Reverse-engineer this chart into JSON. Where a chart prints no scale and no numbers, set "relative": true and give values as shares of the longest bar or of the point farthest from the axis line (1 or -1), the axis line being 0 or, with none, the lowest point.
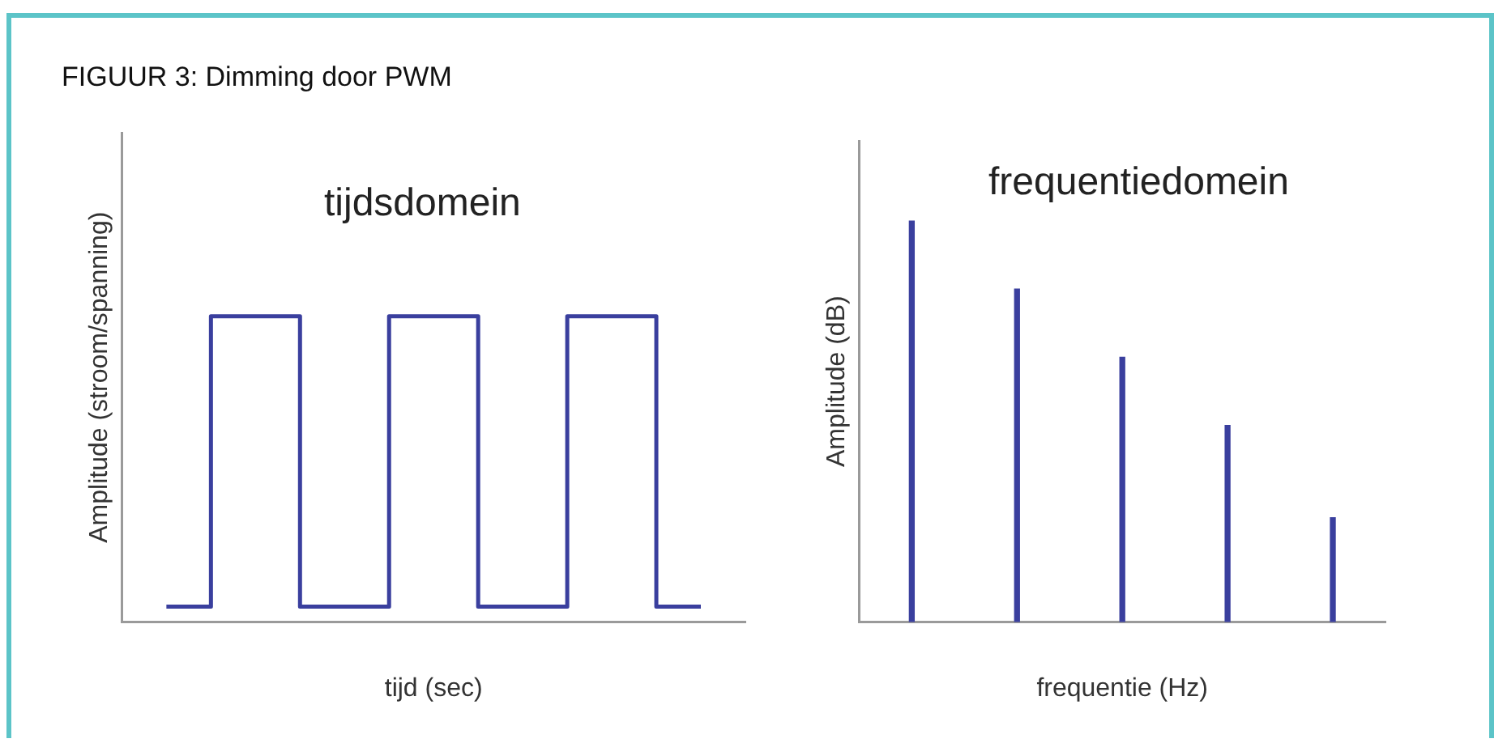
{
  "chart_data": [
    {
      "type": "step",
      "title": "tijdsdomein",
      "annotations": [
        "FIGUUR 3: Dimming door PWM"
      ],
      "xlabel": "tijd (sec)",
      "ylabel": "Amplitude (stroom/spanning)",
      "relative": true,
      "categories": [
        null,
        null,
        null,
        null,
        null,
        null,
        null
      ],
      "series": [
        {
          "color": "#3a3f9e",
          "values": [
            0.05,
            1,
            0.05,
            1,
            0.05,
            1,
            0.05
          ]
        }
      ],
      "grid": false,
      "legend": false,
      "marker": "none",
      "line_style": "solid"
    },
    {
      "type": "bar",
      "title": "frequentiedomein",
      "xlabel": "frequentie (Hz)",
      "ylabel": "Amplitude (dB)",
      "relative": true,
      "categories": [
        null,
        null,
        null,
        null,
        null
      ],
      "series": [
        {
          "color": "#3a3f9e",
          "values": [
            1,
            0.83,
            0.66,
            0.49,
            0.26
          ]
        }
      ],
      "grid": false,
      "legend": false
    }
  ]
}
